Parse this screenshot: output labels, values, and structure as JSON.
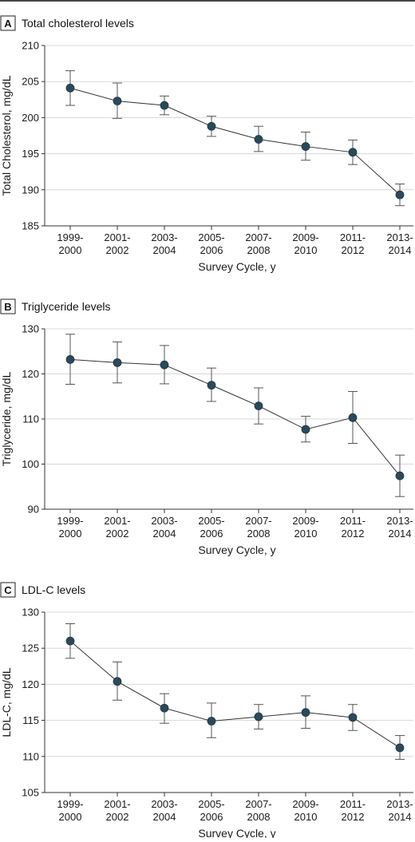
{
  "chart_data": [
    {
      "type": "line",
      "panel_letter": "A",
      "title": "Total cholesterol levels",
      "xlabel": "Survey Cycle, y",
      "ylabel": "Total Cholesterol, mg/dL",
      "categories": [
        [
          "1999-",
          "2000"
        ],
        [
          "2001-",
          "2002"
        ],
        [
          "2003-",
          "2004"
        ],
        [
          "2005-",
          "2006"
        ],
        [
          "2007-",
          "2008"
        ],
        [
          "2009-",
          "2010"
        ],
        [
          "2011-",
          "2012"
        ],
        [
          "2013-",
          "2014"
        ]
      ],
      "ylim": [
        185,
        210
      ],
      "yticks": [
        185,
        190,
        195,
        200,
        205,
        210
      ],
      "grid": "horizontal",
      "values": [
        204.1,
        202.3,
        201.7,
        198.8,
        197.0,
        196.0,
        195.2,
        189.3
      ],
      "err_low": [
        201.7,
        199.9,
        200.4,
        197.4,
        195.3,
        194.1,
        193.5,
        187.8
      ],
      "err_high": [
        206.5,
        204.8,
        203.0,
        200.2,
        198.8,
        198.0,
        196.9,
        190.8
      ]
    },
    {
      "type": "line",
      "panel_letter": "B",
      "title": "Triglyceride levels",
      "xlabel": "Survey Cycle, y",
      "ylabel": "Triglyceride, mg/dL",
      "categories": [
        [
          "1999-",
          "2000"
        ],
        [
          "2001-",
          "2002"
        ],
        [
          "2003-",
          "2004"
        ],
        [
          "2005-",
          "2006"
        ],
        [
          "2007-",
          "2008"
        ],
        [
          "2009-",
          "2010"
        ],
        [
          "2011-",
          "2012"
        ],
        [
          "2013-",
          "2014"
        ]
      ],
      "ylim": [
        90,
        130
      ],
      "yticks": [
        90,
        100,
        110,
        120,
        130
      ],
      "grid": "horizontal",
      "values": [
        123.2,
        122.5,
        122.0,
        117.5,
        112.9,
        107.7,
        110.3,
        97.4
      ],
      "err_low": [
        117.7,
        118.0,
        117.8,
        113.9,
        108.9,
        104.9,
        104.6,
        92.8
      ],
      "err_high": [
        128.8,
        127.1,
        126.3,
        121.3,
        116.9,
        110.6,
        116.1,
        102.0
      ]
    },
    {
      "type": "line",
      "panel_letter": "C",
      "title": "LDL-C levels",
      "xlabel": "Survey Cycle, y",
      "ylabel": "LDL-C, mg/dL",
      "categories": [
        [
          "1999-",
          "2000"
        ],
        [
          "2001-",
          "2002"
        ],
        [
          "2003-",
          "2004"
        ],
        [
          "2005-",
          "2006"
        ],
        [
          "2007-",
          "2008"
        ],
        [
          "2009-",
          "2010"
        ],
        [
          "2011-",
          "2012"
        ],
        [
          "2013-",
          "2014"
        ]
      ],
      "ylim": [
        105,
        130
      ],
      "yticks": [
        105,
        110,
        115,
        120,
        125,
        130
      ],
      "grid": "horizontal",
      "values": [
        126.0,
        120.4,
        116.7,
        114.9,
        115.5,
        116.1,
        115.4,
        111.2
      ],
      "err_low": [
        123.6,
        117.8,
        114.6,
        112.6,
        113.8,
        113.9,
        113.6,
        109.6
      ],
      "err_high": [
        128.4,
        123.1,
        118.7,
        117.4,
        117.2,
        118.4,
        117.2,
        112.9
      ]
    }
  ]
}
